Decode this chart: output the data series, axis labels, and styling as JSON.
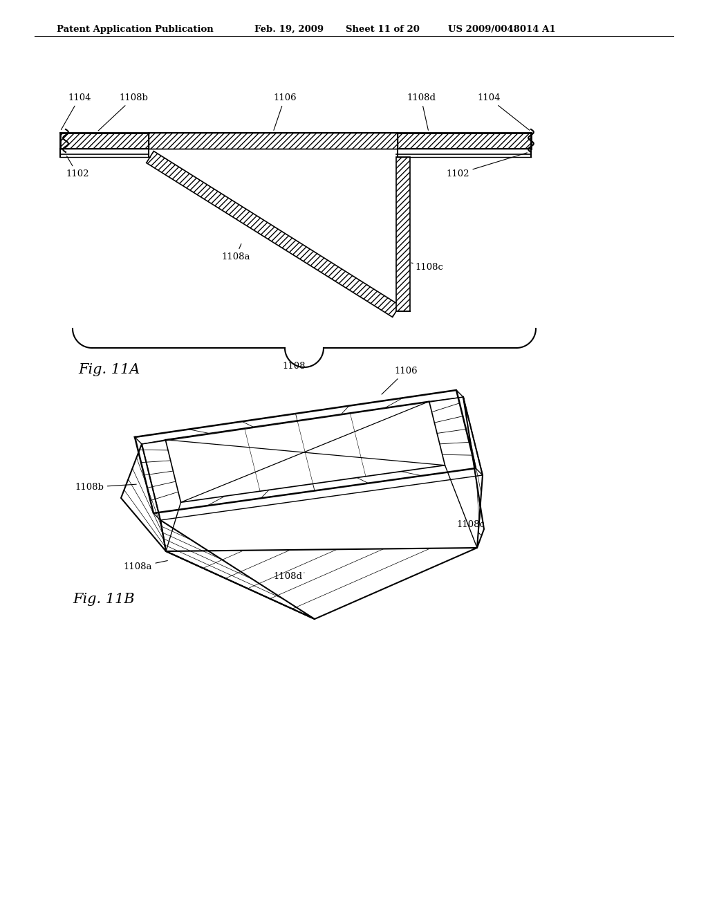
{
  "bg_color": "#ffffff",
  "header_text": "Patent Application Publication",
  "header_date": "Feb. 19, 2009",
  "header_sheet": "Sheet 11 of 20",
  "header_patent": "US 2009/0048014 A1",
  "fig11a_label": "Fig. 11A",
  "fig11b_label": "Fig. 11B",
  "label_1102_left": "1102",
  "label_1102_right": "1102",
  "label_1104_left": "1104",
  "label_1104_right": "1104",
  "label_1106": "1106",
  "label_1108a": "1108a",
  "label_1108b": "1108b",
  "label_1108c": "1108c",
  "label_1108d": "1108d",
  "label_1108": "1108",
  "line_color": "#000000",
  "text_color": "#000000"
}
